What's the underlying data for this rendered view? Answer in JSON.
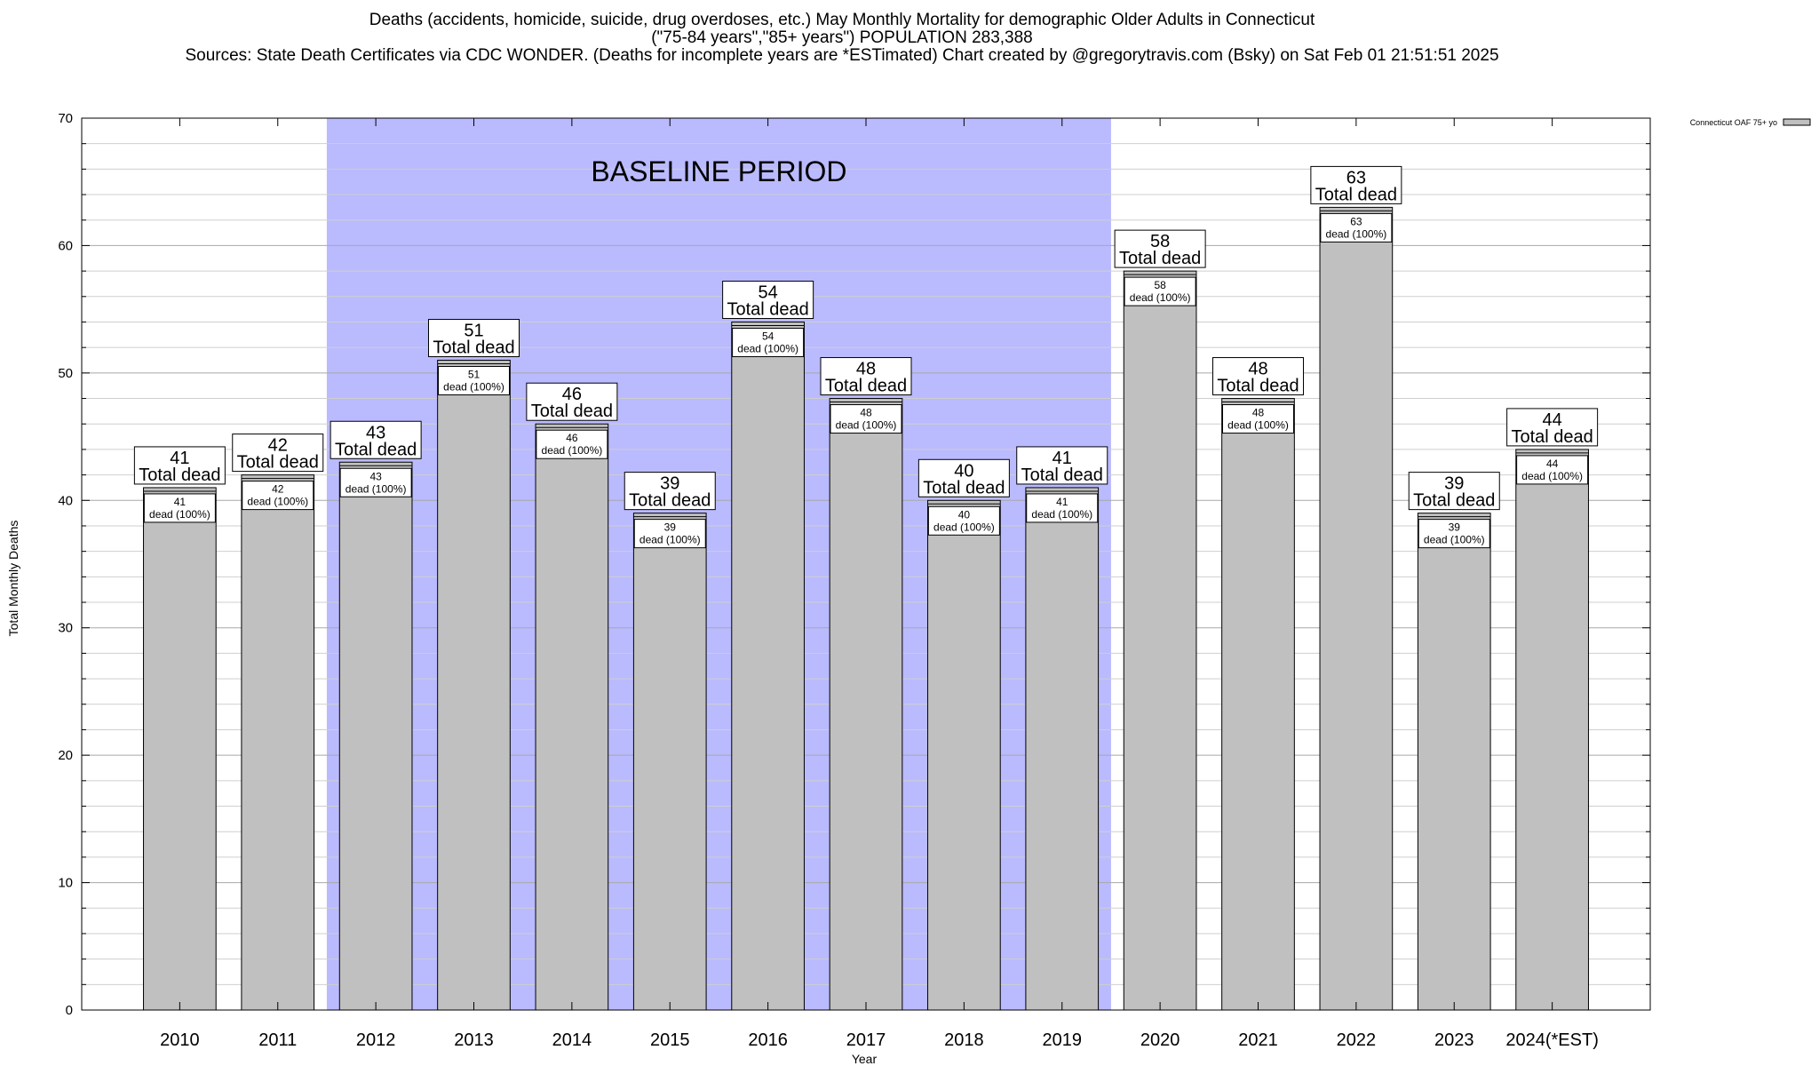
{
  "header": {
    "title_line1": "Deaths (accidents, homicide, suicide, drug overdoses, etc.) May Monthly Mortality for demographic Older Adults in Connecticut",
    "title_line2": "(\"75-84 years\",\"85+ years\") POPULATION 283,388",
    "title_line3": "Sources: State Death Certificates via CDC WONDER. (Deaths for incomplete years are *ESTimated)                Chart created by @gregorytravis.com (Bsky) on Sat Feb 01 21:51:51 2025"
  },
  "chart_data": {
    "type": "bar",
    "xlabel": "Year",
    "ylabel": "Total Monthly Deaths",
    "ylim": [
      0,
      70
    ],
    "yticks": [
      0,
      10,
      20,
      30,
      40,
      50,
      60,
      70
    ],
    "grid": true,
    "legend": {
      "label": "Connecticut OAF 75+ yo",
      "placement": "top-right"
    },
    "baseline_band": {
      "label": "BASELINE PERIOD",
      "from": "2012",
      "to": "2019",
      "color": "#babaff"
    },
    "categories": [
      "2010",
      "2011",
      "2012",
      "2013",
      "2014",
      "2015",
      "2016",
      "2017",
      "2018",
      "2019",
      "2020",
      "2021",
      "2022",
      "2023",
      "2024(*EST)"
    ],
    "series": [
      {
        "name": "Connecticut OAF 75+ yo",
        "values": [
          41,
          42,
          43,
          51,
          46,
          39,
          54,
          48,
          40,
          41,
          58,
          48,
          63,
          39,
          44
        ]
      }
    ],
    "total_label": "Total dead",
    "inner_label_suffix": "dead (100%)",
    "bar_color": "#c0c0c0"
  }
}
